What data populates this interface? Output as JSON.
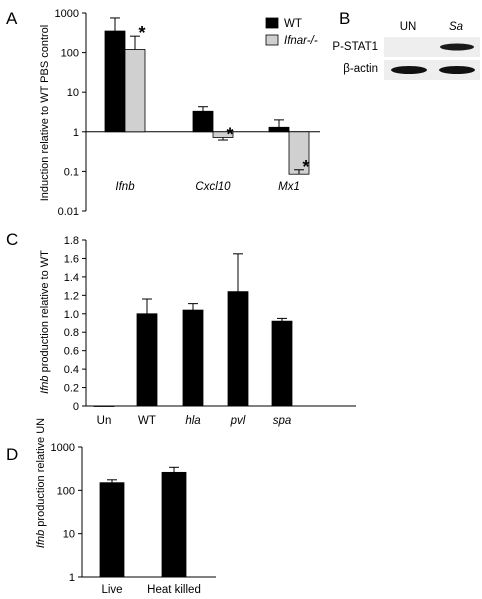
{
  "panels": {
    "a": {
      "letter": "A"
    },
    "b": {
      "letter": "B"
    },
    "c": {
      "letter": "C"
    },
    "d": {
      "letter": "D"
    }
  },
  "blot": {
    "columns": [
      "UN",
      "Sa"
    ],
    "rows": [
      "P-STAT1",
      "β-actin"
    ],
    "band_intensity": {
      "P-STAT1": [
        0.0,
        1.0
      ],
      "β-actin": [
        1.0,
        1.0
      ]
    }
  },
  "colors": {
    "wt": "#000000",
    "ko": "#d0d0d0"
  },
  "chart_data": [
    {
      "id": "A",
      "type": "bar",
      "yscale": "log",
      "ylim": [
        0.01,
        1000
      ],
      "yticks": [
        "0.01",
        "0.1",
        "1",
        "10",
        "100",
        "1000"
      ],
      "ylabel": "Induction relative to WT PBS control",
      "categories": [
        "Ifnb",
        "Cxcl10",
        "Mx1"
      ],
      "series": [
        {
          "name": "WT",
          "values": [
            350,
            3.3,
            1.3
          ],
          "errors": [
            750,
            4.3,
            2.0
          ]
        },
        {
          "name": "Ifnar-/-",
          "values": [
            120,
            0.72,
            0.085
          ],
          "errors": [
            260,
            0.62,
            0.11
          ]
        }
      ],
      "annotations": [
        "*",
        "*",
        "*"
      ],
      "legend_position": "top-right"
    },
    {
      "id": "C",
      "type": "bar",
      "ylim": [
        0,
        1.8
      ],
      "yticks": [
        "0",
        "0.2",
        "0.4",
        "0.6",
        "0.8",
        "1.0",
        "1.2",
        "1.4",
        "1.6",
        "1.8"
      ],
      "ylabel_gene": "Ifnb",
      "ylabel_rest": " production relative to WT",
      "categories": [
        "Un",
        "WT",
        "hla",
        "pvl",
        "spa"
      ],
      "values": [
        0,
        1.0,
        1.04,
        1.24,
        0.92
      ],
      "errors": [
        0,
        0.16,
        0.07,
        0.41,
        0.03
      ]
    },
    {
      "id": "D",
      "type": "bar",
      "yscale": "log",
      "ylim": [
        1,
        1000
      ],
      "yticks": [
        "1",
        "10",
        "100",
        "1000"
      ],
      "ylabel_gene": "Ifnb",
      "ylabel_rest": " production relative UN",
      "categories": [
        "Live",
        "Heat killed"
      ],
      "values": [
        150,
        260
      ],
      "errors": [
        175,
        340
      ]
    }
  ]
}
